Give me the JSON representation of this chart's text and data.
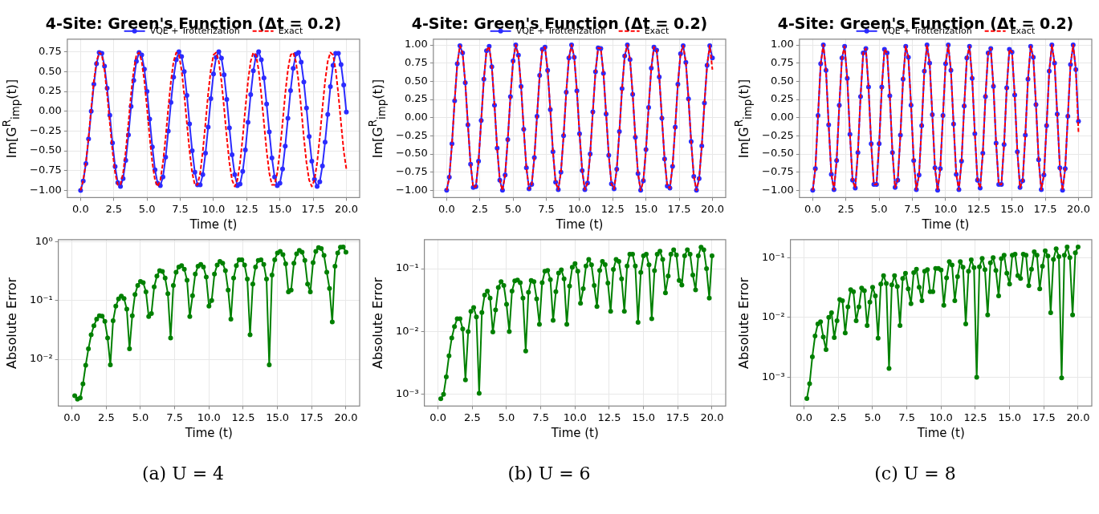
{
  "chart_data": [
    {
      "type": "line",
      "title": "4-Site: Green's Function (Δt = 0.2)",
      "xlabel": "Time (t)",
      "ylabel": "Im[G$^{R}$$_{imp}$(t)]",
      "grid": true,
      "legend": "top",
      "xlim": [
        -1,
        21
      ],
      "ylim": [
        -1.09,
        0.91
      ],
      "xticks": [
        {
          "value": 0,
          "label": "0.0"
        },
        {
          "value": 2.5,
          "label": "2.5"
        },
        {
          "value": 5,
          "label": "5.0"
        },
        {
          "value": 7.5,
          "label": "7.5"
        },
        {
          "value": 10,
          "label": "10.0"
        },
        {
          "value": 12.5,
          "label": "12.5"
        },
        {
          "value": 15,
          "label": "15.0"
        },
        {
          "value": 17.5,
          "label": "17.5"
        },
        {
          "value": 20,
          "label": "20.0"
        }
      ],
      "yticks": [
        {
          "value": -1,
          "label": "−1.00"
        },
        {
          "value": -0.75,
          "label": "−0.75"
        },
        {
          "value": -0.5,
          "label": "−0.50"
        },
        {
          "value": -0.25,
          "label": "−0.25"
        },
        {
          "value": 0,
          "label": "0.00"
        },
        {
          "value": 0.25,
          "label": "0.25"
        },
        {
          "value": 0.5,
          "label": "0.50"
        },
        {
          "value": 0.75,
          "label": "0.75"
        }
      ],
      "x": [
        0,
        0.2,
        0.4,
        0.6,
        0.8,
        1,
        1.2,
        1.4,
        1.6,
        1.8,
        2,
        2.2,
        2.4,
        2.6,
        2.8,
        3,
        3.2,
        3.4,
        3.6,
        3.8,
        4,
        4.2,
        4.4,
        4.6,
        4.8,
        5,
        5.2,
        5.4,
        5.6,
        5.8,
        6,
        6.2,
        6.4,
        6.6,
        6.8,
        7,
        7.2,
        7.4,
        7.6,
        7.8,
        8,
        8.2,
        8.4,
        8.6,
        8.8,
        9,
        9.2,
        9.4,
        9.6,
        9.8,
        10,
        10.2,
        10.4,
        10.6,
        10.8,
        11,
        11.2,
        11.4,
        11.6,
        11.8,
        12,
        12.2,
        12.4,
        12.6,
        12.8,
        13,
        13.2,
        13.4,
        13.6,
        13.8,
        14,
        14.2,
        14.4,
        14.6,
        14.8,
        15,
        15.2,
        15.4,
        15.6,
        15.8,
        16,
        16.2,
        16.4,
        16.6,
        16.8,
        17,
        17.2,
        17.4,
        17.6,
        17.8,
        18,
        18.2,
        18.4,
        18.6,
        18.8,
        19,
        19.2,
        19.4,
        19.6,
        19.8,
        20
      ],
      "series": [
        {
          "name": "VQE + Trotterization",
          "color": "#2b2bff",
          "marker": "circle",
          "line_style": "solid",
          "values": [
            -1.0,
            -0.88,
            -0.66,
            -0.35,
            0.0,
            0.34,
            0.6,
            0.74,
            0.73,
            0.57,
            0.29,
            -0.05,
            -0.4,
            -0.7,
            -0.9,
            -0.95,
            -0.85,
            -0.62,
            -0.3,
            0.06,
            0.39,
            0.63,
            0.74,
            0.71,
            0.53,
            0.25,
            -0.1,
            -0.45,
            -0.74,
            -0.91,
            -0.94,
            -0.83,
            -0.58,
            -0.25,
            0.11,
            0.43,
            0.65,
            0.75,
            0.69,
            0.5,
            0.2,
            -0.16,
            -0.5,
            -0.77,
            -0.93,
            -0.93,
            -0.8,
            -0.53,
            -0.2,
            0.16,
            0.47,
            0.68,
            0.75,
            0.67,
            0.46,
            0.15,
            -0.21,
            -0.55,
            -0.8,
            -0.94,
            -0.92,
            -0.76,
            -0.49,
            -0.14,
            0.21,
            0.51,
            0.7,
            0.75,
            0.65,
            0.42,
            0.09,
            -0.26,
            -0.59,
            -0.83,
            -0.94,
            -0.91,
            -0.73,
            -0.44,
            -0.09,
            0.26,
            0.54,
            0.72,
            0.74,
            0.62,
            0.37,
            0.04,
            -0.32,
            -0.63,
            -0.86,
            -0.95,
            -0.89,
            -0.69,
            -0.39,
            -0.04,
            0.31,
            0.58,
            0.73,
            0.73,
            0.59,
            0.33,
            -0.01
          ]
        },
        {
          "name": "Exact",
          "color": "#ff0000",
          "marker": "none",
          "line_style": "dashed",
          "values": [
            -1.0,
            -0.87,
            -0.65,
            -0.33,
            0.04,
            0.38,
            0.63,
            0.74,
            0.71,
            0.52,
            0.21,
            -0.15,
            -0.5,
            -0.78,
            -0.93,
            -0.93,
            -0.78,
            -0.5,
            -0.15,
            0.22,
            0.52,
            0.71,
            0.74,
            0.63,
            0.38,
            0.04,
            -0.33,
            -0.65,
            -0.87,
            -0.95,
            -0.87,
            -0.65,
            -0.33,
            0.04,
            0.38,
            0.63,
            0.74,
            0.71,
            0.52,
            0.21,
            -0.15,
            -0.5,
            -0.78,
            -0.93,
            -0.93,
            -0.78,
            -0.5,
            -0.15,
            0.22,
            0.52,
            0.71,
            0.74,
            0.63,
            0.38,
            0.04,
            -0.33,
            -0.65,
            -0.87,
            -0.95,
            -0.87,
            -0.65,
            -0.33,
            0.04,
            0.38,
            0.63,
            0.74,
            0.71,
            0.52,
            0.21,
            -0.15,
            -0.5,
            -0.78,
            -0.93,
            -0.93,
            -0.78,
            -0.5,
            -0.15,
            0.22,
            0.52,
            0.71,
            0.74,
            0.63,
            0.38,
            0.04,
            -0.33,
            -0.65,
            -0.87,
            -0.95,
            -0.87,
            -0.65,
            -0.33,
            0.04,
            0.38,
            0.63,
            0.74,
            0.71,
            0.52,
            0.21,
            -0.15,
            -0.5,
            -0.73
          ]
        }
      ]
    },
    {
      "type": "line",
      "title": "4-Site: Green's Function (Δt = 0.2)",
      "xlabel": "Time (t)",
      "ylabel": "Im[G$^{R}$$_{imp}$(t)]",
      "grid": true,
      "legend": "top",
      "xlim": [
        -1,
        21
      ],
      "ylim": [
        -1.1,
        1.08
      ],
      "xticks": [
        {
          "value": 0,
          "label": "0.0"
        },
        {
          "value": 2.5,
          "label": "2.5"
        },
        {
          "value": 5,
          "label": "5.0"
        },
        {
          "value": 7.5,
          "label": "7.5"
        },
        {
          "value": 10,
          "label": "10.0"
        },
        {
          "value": 12.5,
          "label": "12.5"
        },
        {
          "value": 15,
          "label": "15.0"
        },
        {
          "value": 17.5,
          "label": "17.5"
        },
        {
          "value": 20,
          "label": "20.0"
        }
      ],
      "yticks": [
        {
          "value": -1,
          "label": "−1.00"
        },
        {
          "value": -0.75,
          "label": "−0.75"
        },
        {
          "value": -0.5,
          "label": "−0.50"
        },
        {
          "value": -0.25,
          "label": "−0.25"
        },
        {
          "value": 0,
          "label": "0.00"
        },
        {
          "value": 0.25,
          "label": "0.25"
        },
        {
          "value": 0.5,
          "label": "0.50"
        },
        {
          "value": 0.75,
          "label": "0.75"
        },
        {
          "value": 1,
          "label": "1.00"
        }
      ],
      "x": [
        0,
        0.2,
        0.4,
        0.6,
        0.8,
        1,
        1.2,
        1.4,
        1.6,
        1.8,
        2,
        2.2,
        2.4,
        2.6,
        2.8,
        3,
        3.2,
        3.4,
        3.6,
        3.8,
        4,
        4.2,
        4.4,
        4.6,
        4.8,
        5,
        5.2,
        5.4,
        5.6,
        5.8,
        6,
        6.2,
        6.4,
        6.6,
        6.8,
        7,
        7.2,
        7.4,
        7.6,
        7.8,
        8,
        8.2,
        8.4,
        8.6,
        8.8,
        9,
        9.2,
        9.4,
        9.6,
        9.8,
        10,
        10.2,
        10.4,
        10.6,
        10.8,
        11,
        11.2,
        11.4,
        11.6,
        11.8,
        12,
        12.2,
        12.4,
        12.6,
        12.8,
        13,
        13.2,
        13.4,
        13.6,
        13.8,
        14,
        14.2,
        14.4,
        14.6,
        14.8,
        15,
        15.2,
        15.4,
        15.6,
        15.8,
        16,
        16.2,
        16.4,
        16.6,
        16.8,
        17,
        17.2,
        17.4,
        17.6,
        17.8,
        18,
        18.2,
        18.4,
        18.6,
        18.8,
        19,
        19.2,
        19.4,
        19.6,
        19.8,
        20
      ],
      "series": [
        {
          "name": "VQE + Trotterization",
          "color": "#2b2bff",
          "marker": "circle",
          "line_style": "solid",
          "values": [
            -1.0,
            -0.82,
            -0.36,
            0.23,
            0.74,
            0.99,
            0.89,
            0.48,
            -0.1,
            -0.64,
            -0.96,
            -0.95,
            -0.6,
            -0.04,
            0.53,
            0.92,
            0.98,
            0.7,
            0.17,
            -0.42,
            -0.86,
            -1.0,
            -0.79,
            -0.3,
            0.29,
            0.78,
            1.0,
            0.86,
            0.43,
            -0.16,
            -0.69,
            -0.98,
            -0.92,
            -0.55,
            0.02,
            0.58,
            0.94,
            0.97,
            0.65,
            0.11,
            -0.47,
            -0.89,
            -0.99,
            -0.75,
            -0.25,
            0.35,
            0.82,
            1.0,
            0.83,
            0.37,
            -0.22,
            -0.73,
            -0.99,
            -0.9,
            -0.5,
            0.08,
            0.63,
            0.96,
            0.95,
            0.61,
            0.05,
            -0.52,
            -0.91,
            -0.98,
            -0.71,
            -0.19,
            0.4,
            0.85,
            1.0,
            0.8,
            0.32,
            -0.27,
            -0.77,
            -1.0,
            -0.87,
            -0.44,
            0.14,
            0.68,
            0.97,
            0.93,
            0.56,
            -0.01,
            -0.57,
            -0.94,
            -0.97,
            -0.67,
            -0.13,
            0.46,
            0.88,
            0.99,
            0.76,
            0.26,
            -0.33,
            -0.81,
            -1.0,
            -0.84,
            -0.39,
            0.2,
            0.72,
            0.99,
            0.82
          ]
        },
        {
          "name": "Exact",
          "color": "#ff0000",
          "marker": "none",
          "line_style": "dashed",
          "values": [
            -1.0,
            -0.82,
            -0.36,
            0.23,
            0.74,
            0.99,
            0.89,
            0.48,
            -0.1,
            -0.64,
            -0.96,
            -0.95,
            -0.6,
            -0.04,
            0.53,
            0.92,
            0.98,
            0.7,
            0.17,
            -0.42,
            -0.86,
            -1.0,
            -0.79,
            -0.3,
            0.29,
            0.78,
            1.0,
            0.86,
            0.43,
            -0.16,
            -0.69,
            -0.98,
            -0.92,
            -0.55,
            0.02,
            0.58,
            0.94,
            0.97,
            0.65,
            0.11,
            -0.47,
            -0.89,
            -0.99,
            -0.75,
            -0.25,
            0.35,
            0.82,
            1.0,
            0.83,
            0.37,
            -0.22,
            -0.73,
            -0.99,
            -0.9,
            -0.5,
            0.08,
            0.63,
            0.96,
            0.95,
            0.61,
            0.05,
            -0.52,
            -0.91,
            -0.98,
            -0.71,
            -0.19,
            0.4,
            0.85,
            1.0,
            0.8,
            0.32,
            -0.27,
            -0.77,
            -1.0,
            -0.87,
            -0.44,
            0.14,
            0.68,
            0.97,
            0.93,
            0.56,
            -0.01,
            -0.57,
            -0.94,
            -0.97,
            -0.67,
            -0.13,
            0.46,
            0.88,
            0.99,
            0.76,
            0.26,
            -0.33,
            -0.81,
            -1.0,
            -0.84,
            -0.39,
            0.2,
            0.72,
            0.99,
            0.66
          ]
        }
      ]
    },
    {
      "type": "line",
      "title": "4-Site: Green's Function (Δt = 0.2)",
      "xlabel": "Time (t)",
      "ylabel": "Im[G$^{R}$$_{imp}$(t)]",
      "grid": true,
      "legend": "top",
      "xlim": [
        -1,
        21
      ],
      "ylim": [
        -1.1,
        1.08
      ],
      "xticks": [
        {
          "value": 0,
          "label": "0.0"
        },
        {
          "value": 2.5,
          "label": "2.5"
        },
        {
          "value": 5,
          "label": "5.0"
        },
        {
          "value": 7.5,
          "label": "7.5"
        },
        {
          "value": 10,
          "label": "10.0"
        },
        {
          "value": 12.5,
          "label": "12.5"
        },
        {
          "value": 15,
          "label": "15.0"
        },
        {
          "value": 17.5,
          "label": "17.5"
        },
        {
          "value": 20,
          "label": "20.0"
        }
      ],
      "yticks": [
        {
          "value": -1,
          "label": "−1.00"
        },
        {
          "value": -0.75,
          "label": "−0.75"
        },
        {
          "value": -0.5,
          "label": "−0.50"
        },
        {
          "value": -0.25,
          "label": "−0.25"
        },
        {
          "value": 0,
          "label": "0.00"
        },
        {
          "value": 0.25,
          "label": "0.25"
        },
        {
          "value": 0.5,
          "label": "0.50"
        },
        {
          "value": 0.75,
          "label": "0.75"
        },
        {
          "value": 1,
          "label": "1.00"
        }
      ],
      "x": [
        0,
        0.2,
        0.4,
        0.6,
        0.8,
        1,
        1.2,
        1.4,
        1.6,
        1.8,
        2,
        2.2,
        2.4,
        2.6,
        2.8,
        3,
        3.2,
        3.4,
        3.6,
        3.8,
        4,
        4.2,
        4.4,
        4.6,
        4.8,
        5,
        5.2,
        5.4,
        5.6,
        5.8,
        6,
        6.2,
        6.4,
        6.6,
        6.8,
        7,
        7.2,
        7.4,
        7.6,
        7.8,
        8,
        8.2,
        8.4,
        8.6,
        8.8,
        9,
        9.2,
        9.4,
        9.6,
        9.8,
        10,
        10.2,
        10.4,
        10.6,
        10.8,
        11,
        11.2,
        11.4,
        11.6,
        11.8,
        12,
        12.2,
        12.4,
        12.6,
        12.8,
        13,
        13.2,
        13.4,
        13.6,
        13.8,
        14,
        14.2,
        14.4,
        14.6,
        14.8,
        15,
        15.2,
        15.4,
        15.6,
        15.8,
        16,
        16.2,
        16.4,
        16.6,
        16.8,
        17,
        17.2,
        17.4,
        17.6,
        17.8,
        18,
        18.2,
        18.4,
        18.6,
        18.8,
        19,
        19.2,
        19.4,
        19.6,
        19.8,
        20
      ],
      "series": [
        {
          "name": "VQE + Trotterization",
          "color": "#2b2bff",
          "marker": "circle",
          "line_style": "solid",
          "values": [
            -1.0,
            -0.7,
            0.03,
            0.74,
            1.0,
            0.65,
            -0.1,
            -0.78,
            -0.99,
            -0.59,
            0.17,
            0.82,
            0.98,
            0.54,
            -0.23,
            -0.86,
            -0.97,
            -0.48,
            0.29,
            0.89,
            0.95,
            0.42,
            -0.36,
            -0.92,
            -0.92,
            -0.36,
            0.42,
            0.94,
            0.89,
            0.3,
            -0.48,
            -0.96,
            -0.86,
            -0.24,
            0.53,
            0.98,
            0.83,
            0.17,
            -0.59,
            -0.99,
            -0.79,
            -0.11,
            0.64,
            1.0,
            0.75,
            0.04,
            -0.69,
            -1.0,
            -0.7,
            0.03,
            0.74,
            1.0,
            0.65,
            -0.09,
            -0.78,
            -0.99,
            -0.6,
            0.16,
            0.82,
            0.98,
            0.54,
            -0.22,
            -0.86,
            -0.97,
            -0.49,
            0.29,
            0.89,
            0.95,
            0.43,
            -0.35,
            -0.92,
            -0.92,
            -0.37,
            0.41,
            0.94,
            0.9,
            0.31,
            -0.47,
            -0.96,
            -0.87,
            -0.24,
            0.53,
            0.98,
            0.83,
            0.18,
            -0.58,
            -0.99,
            -0.79,
            -0.11,
            0.64,
            1.0,
            0.75,
            0.05,
            -0.69,
            -1.0,
            -0.7,
            0.02,
            0.73,
            1.0,
            0.66,
            -0.05
          ]
        },
        {
          "name": "Exact",
          "color": "#ff0000",
          "marker": "none",
          "line_style": "dashed",
          "values": [
            -1.0,
            -0.7,
            0.03,
            0.74,
            1.0,
            0.65,
            -0.1,
            -0.78,
            -0.99,
            -0.59,
            0.17,
            0.82,
            0.98,
            0.54,
            -0.23,
            -0.86,
            -0.97,
            -0.48,
            0.29,
            0.89,
            0.95,
            0.42,
            -0.36,
            -0.92,
            -0.92,
            -0.36,
            0.42,
            0.94,
            0.89,
            0.3,
            -0.48,
            -0.96,
            -0.86,
            -0.24,
            0.53,
            0.98,
            0.83,
            0.17,
            -0.59,
            -0.99,
            -0.79,
            -0.11,
            0.64,
            1.0,
            0.75,
            0.04,
            -0.69,
            -1.0,
            -0.7,
            0.03,
            0.74,
            1.0,
            0.65,
            -0.09,
            -0.78,
            -0.99,
            -0.6,
            0.16,
            0.82,
            0.98,
            0.54,
            -0.22,
            -0.86,
            -0.97,
            -0.49,
            0.29,
            0.89,
            0.95,
            0.43,
            -0.35,
            -0.92,
            -0.92,
            -0.37,
            0.41,
            0.94,
            0.9,
            0.31,
            -0.47,
            -0.96,
            -0.87,
            -0.24,
            0.53,
            0.98,
            0.83,
            0.18,
            -0.58,
            -0.99,
            -0.79,
            -0.11,
            0.64,
            1.0,
            0.75,
            0.05,
            -0.69,
            -1.0,
            -0.7,
            0.02,
            0.73,
            1.0,
            0.66,
            -0.2
          ]
        }
      ]
    },
    {
      "type": "line",
      "xlabel": "Time (t)",
      "ylabel": "Absolute Error",
      "grid": true,
      "log": "y",
      "xlim": [
        -1,
        21
      ],
      "ylim": [
        0.0016,
        1.08
      ],
      "xticks": [
        {
          "value": 0,
          "label": "0.0"
        },
        {
          "value": 2.5,
          "label": "2.5"
        },
        {
          "value": 5,
          "label": "5.0"
        },
        {
          "value": 7.5,
          "label": "7.5"
        },
        {
          "value": 10,
          "label": "10.0"
        },
        {
          "value": 12.5,
          "label": "12.5"
        },
        {
          "value": 15,
          "label": "15.0"
        },
        {
          "value": 17.5,
          "label": "17.5"
        },
        {
          "value": 20,
          "label": "20.0"
        }
      ],
      "yticks": [
        {
          "value": 0.01,
          "label": "10⁻²"
        },
        {
          "value": 0.1,
          "label": "10⁻¹"
        },
        {
          "value": 1,
          "label": "10⁰"
        }
      ],
      "annotations": [
        "(a) U = 4"
      ],
      "x": [
        0.2,
        0.4,
        0.6,
        0.8,
        1,
        1.2,
        1.4,
        1.6,
        1.8,
        2,
        2.2,
        2.4,
        2.6,
        2.8,
        3,
        3.2,
        3.4,
        3.6,
        3.8,
        4,
        4.2,
        4.4,
        4.6,
        4.8,
        5,
        5.2,
        5.4,
        5.6,
        5.8,
        6,
        6.2,
        6.4,
        6.6,
        6.8,
        7,
        7.2,
        7.4,
        7.6,
        7.8,
        8,
        8.2,
        8.4,
        8.6,
        8.8,
        9,
        9.2,
        9.4,
        9.6,
        9.8,
        10,
        10.2,
        10.4,
        10.6,
        10.8,
        11,
        11.2,
        11.4,
        11.6,
        11.8,
        12,
        12.2,
        12.4,
        12.6,
        12.8,
        13,
        13.2,
        13.4,
        13.6,
        13.8,
        14,
        14.2,
        14.4,
        14.6,
        14.8,
        15,
        15.2,
        15.4,
        15.6,
        15.8,
        16,
        16.2,
        16.4,
        16.6,
        16.8,
        17,
        17.2,
        17.4,
        17.6,
        17.8,
        18,
        18.2,
        18.4,
        18.6,
        18.8,
        19,
        19.2,
        19.4,
        19.6,
        19.8,
        20
      ],
      "series": [
        {
          "color": "#008000",
          "marker": "circle",
          "line_style": "solid",
          "values": [
            0.0024,
            0.0021,
            0.0022,
            0.0038,
            0.0079,
            0.015,
            0.026,
            0.037,
            0.048,
            0.055,
            0.054,
            0.044,
            0.023,
            0.008,
            0.045,
            0.08,
            0.106,
            0.118,
            0.108,
            0.071,
            0.015,
            0.055,
            0.126,
            0.18,
            0.21,
            0.2,
            0.14,
            0.053,
            0.06,
            0.17,
            0.26,
            0.32,
            0.31,
            0.24,
            0.13,
            0.023,
            0.18,
            0.3,
            0.37,
            0.39,
            0.34,
            0.22,
            0.053,
            0.12,
            0.28,
            0.38,
            0.41,
            0.37,
            0.25,
            0.08,
            0.1,
            0.28,
            0.4,
            0.46,
            0.43,
            0.32,
            0.15,
            0.048,
            0.24,
            0.39,
            0.49,
            0.49,
            0.4,
            0.23,
            0.026,
            0.19,
            0.37,
            0.48,
            0.49,
            0.41,
            0.23,
            0.008,
            0.27,
            0.49,
            0.64,
            0.68,
            0.6,
            0.42,
            0.14,
            0.15,
            0.43,
            0.62,
            0.71,
            0.66,
            0.48,
            0.19,
            0.14,
            0.44,
            0.68,
            0.79,
            0.76,
            0.58,
            0.3,
            0.16,
            0.043,
            0.38,
            0.64,
            0.8,
            0.81,
            0.66
          ]
        }
      ]
    },
    {
      "type": "line",
      "xlabel": "Time (t)",
      "ylabel": "Absolute Error",
      "grid": true,
      "log": "y",
      "xlim": [
        -1,
        21
      ],
      "ylim": [
        0.00065,
        0.29
      ],
      "xticks": [
        {
          "value": 0,
          "label": "0.0"
        },
        {
          "value": 2.5,
          "label": "2.5"
        },
        {
          "value": 5,
          "label": "5.0"
        },
        {
          "value": 7.5,
          "label": "7.5"
        },
        {
          "value": 10,
          "label": "10.0"
        },
        {
          "value": 12.5,
          "label": "12.5"
        },
        {
          "value": 15,
          "label": "15.0"
        },
        {
          "value": 17.5,
          "label": "17.5"
        },
        {
          "value": 20,
          "label": "20.0"
        }
      ],
      "yticks": [
        {
          "value": 0.001,
          "label": "10⁻³"
        },
        {
          "value": 0.01,
          "label": "10⁻²"
        },
        {
          "value": 0.1,
          "label": "10⁻¹"
        }
      ],
      "annotations": [
        "(b) U = 6"
      ],
      "x": [
        0.2,
        0.4,
        0.6,
        0.8,
        1,
        1.2,
        1.4,
        1.6,
        1.8,
        2,
        2.2,
        2.4,
        2.6,
        2.8,
        3,
        3.2,
        3.4,
        3.6,
        3.8,
        4,
        4.2,
        4.4,
        4.6,
        4.8,
        5,
        5.2,
        5.4,
        5.6,
        5.8,
        6,
        6.2,
        6.4,
        6.6,
        6.8,
        7,
        7.2,
        7.4,
        7.6,
        7.8,
        8,
        8.2,
        8.4,
        8.6,
        8.8,
        9,
        9.2,
        9.4,
        9.6,
        9.8,
        10,
        10.2,
        10.4,
        10.6,
        10.8,
        11,
        11.2,
        11.4,
        11.6,
        11.8,
        12,
        12.2,
        12.4,
        12.6,
        12.8,
        13,
        13.2,
        13.4,
        13.6,
        13.8,
        14,
        14.2,
        14.4,
        14.6,
        14.8,
        15,
        15.2,
        15.4,
        15.6,
        15.8,
        16,
        16.2,
        16.4,
        16.6,
        16.8,
        17,
        17.2,
        17.4,
        17.6,
        17.8,
        18,
        18.2,
        18.4,
        18.6,
        18.8,
        19,
        19.2,
        19.4,
        19.6,
        19.8,
        20
      ],
      "series": [
        {
          "color": "#008000",
          "marker": "circle",
          "line_style": "solid",
          "values": [
            0.00085,
            0.001,
            0.0019,
            0.0041,
            0.0079,
            0.012,
            0.016,
            0.016,
            0.011,
            0.0017,
            0.01,
            0.021,
            0.024,
            0.017,
            0.00104,
            0.02,
            0.038,
            0.044,
            0.034,
            0.0098,
            0.022,
            0.05,
            0.062,
            0.054,
            0.027,
            0.01,
            0.044,
            0.064,
            0.066,
            0.06,
            0.034,
            0.0049,
            0.042,
            0.065,
            0.062,
            0.033,
            0.013,
            0.06,
            0.091,
            0.094,
            0.067,
            0.015,
            0.043,
            0.085,
            0.096,
            0.069,
            0.013,
            0.053,
            0.105,
            0.12,
            0.091,
            0.028,
            0.048,
            0.11,
            0.14,
            0.115,
            0.054,
            0.025,
            0.094,
            0.13,
            0.116,
            0.059,
            0.021,
            0.097,
            0.14,
            0.13,
            0.069,
            0.021,
            0.11,
            0.17,
            0.17,
            0.11,
            0.014,
            0.087,
            0.16,
            0.17,
            0.115,
            0.016,
            0.093,
            0.17,
            0.19,
            0.14,
            0.041,
            0.076,
            0.17,
            0.2,
            0.165,
            0.065,
            0.055,
            0.16,
            0.2,
            0.17,
            0.079,
            0.046,
            0.16,
            0.22,
            0.2,
            0.1,
            0.034,
            0.16
          ]
        }
      ]
    },
    {
      "type": "line",
      "xlabel": "Time (t)",
      "ylabel": "Absolute Error",
      "grid": true,
      "log": "y",
      "xlim": [
        -1,
        21
      ],
      "ylim": [
        0.00033,
        0.2
      ],
      "xticks": [
        {
          "value": 0,
          "label": "0.0"
        },
        {
          "value": 2.5,
          "label": "2.5"
        },
        {
          "value": 5,
          "label": "5.0"
        },
        {
          "value": 7.5,
          "label": "7.5"
        },
        {
          "value": 10,
          "label": "10.0"
        },
        {
          "value": 12.5,
          "label": "12.5"
        },
        {
          "value": 15,
          "label": "15.0"
        },
        {
          "value": 17.5,
          "label": "17.5"
        },
        {
          "value": 20,
          "label": "20.0"
        }
      ],
      "yticks": [
        {
          "value": 0.001,
          "label": "10⁻³"
        },
        {
          "value": 0.01,
          "label": "10⁻²"
        },
        {
          "value": 0.1,
          "label": "10⁻¹"
        }
      ],
      "annotations": [
        "(c) U = 8"
      ],
      "x": [
        0.2,
        0.4,
        0.6,
        0.8,
        1,
        1.2,
        1.4,
        1.6,
        1.8,
        2,
        2.2,
        2.4,
        2.6,
        2.8,
        3,
        3.2,
        3.4,
        3.6,
        3.8,
        4,
        4.2,
        4.4,
        4.6,
        4.8,
        5,
        5.2,
        5.4,
        5.6,
        5.8,
        6,
        6.2,
        6.4,
        6.6,
        6.8,
        7,
        7.2,
        7.4,
        7.6,
        7.8,
        8,
        8.2,
        8.4,
        8.6,
        8.8,
        9,
        9.2,
        9.4,
        9.6,
        9.8,
        10,
        10.2,
        10.4,
        10.6,
        10.8,
        11,
        11.2,
        11.4,
        11.6,
        11.8,
        12,
        12.2,
        12.4,
        12.6,
        12.8,
        13,
        13.2,
        13.4,
        13.6,
        13.8,
        14,
        14.2,
        14.4,
        14.6,
        14.8,
        15,
        15.2,
        15.4,
        15.6,
        15.8,
        16,
        16.2,
        16.4,
        16.6,
        16.8,
        17,
        17.2,
        17.4,
        17.6,
        17.8,
        18,
        18.2,
        18.4,
        18.6,
        18.8,
        19,
        19.2,
        19.4,
        19.6,
        19.8,
        20
      ],
      "series": [
        {
          "color": "#008000",
          "marker": "circle",
          "line_style": "solid",
          "values": [
            0.00044,
            0.00078,
            0.0022,
            0.0049,
            0.0078,
            0.0085,
            0.0047,
            0.0029,
            0.01,
            0.012,
            0.0046,
            0.0088,
            0.02,
            0.019,
            0.0055,
            0.015,
            0.029,
            0.027,
            0.0088,
            0.015,
            0.031,
            0.028,
            0.0073,
            0.018,
            0.032,
            0.023,
            0.0045,
            0.036,
            0.05,
            0.037,
            0.0014,
            0.035,
            0.05,
            0.033,
            0.0073,
            0.045,
            0.055,
            0.03,
            0.017,
            0.056,
            0.064,
            0.032,
            0.019,
            0.059,
            0.063,
            0.027,
            0.027,
            0.066,
            0.066,
            0.062,
            0.016,
            0.046,
            0.086,
            0.075,
            0.019,
            0.048,
            0.086,
            0.069,
            0.0078,
            0.059,
            0.092,
            0.068,
            0.001,
            0.07,
            0.097,
            0.063,
            0.011,
            0.082,
            0.1,
            0.061,
            0.023,
            0.096,
            0.11,
            0.055,
            0.036,
            0.11,
            0.114,
            0.05,
            0.045,
            0.114,
            0.11,
            0.034,
            0.064,
            0.125,
            0.11,
            0.03,
            0.072,
            0.13,
            0.106,
            0.012,
            0.093,
            0.14,
            0.104,
            0.00098,
            0.11,
            0.15,
            0.1,
            0.011,
            0.12,
            0.15
          ]
        }
      ]
    }
  ]
}
